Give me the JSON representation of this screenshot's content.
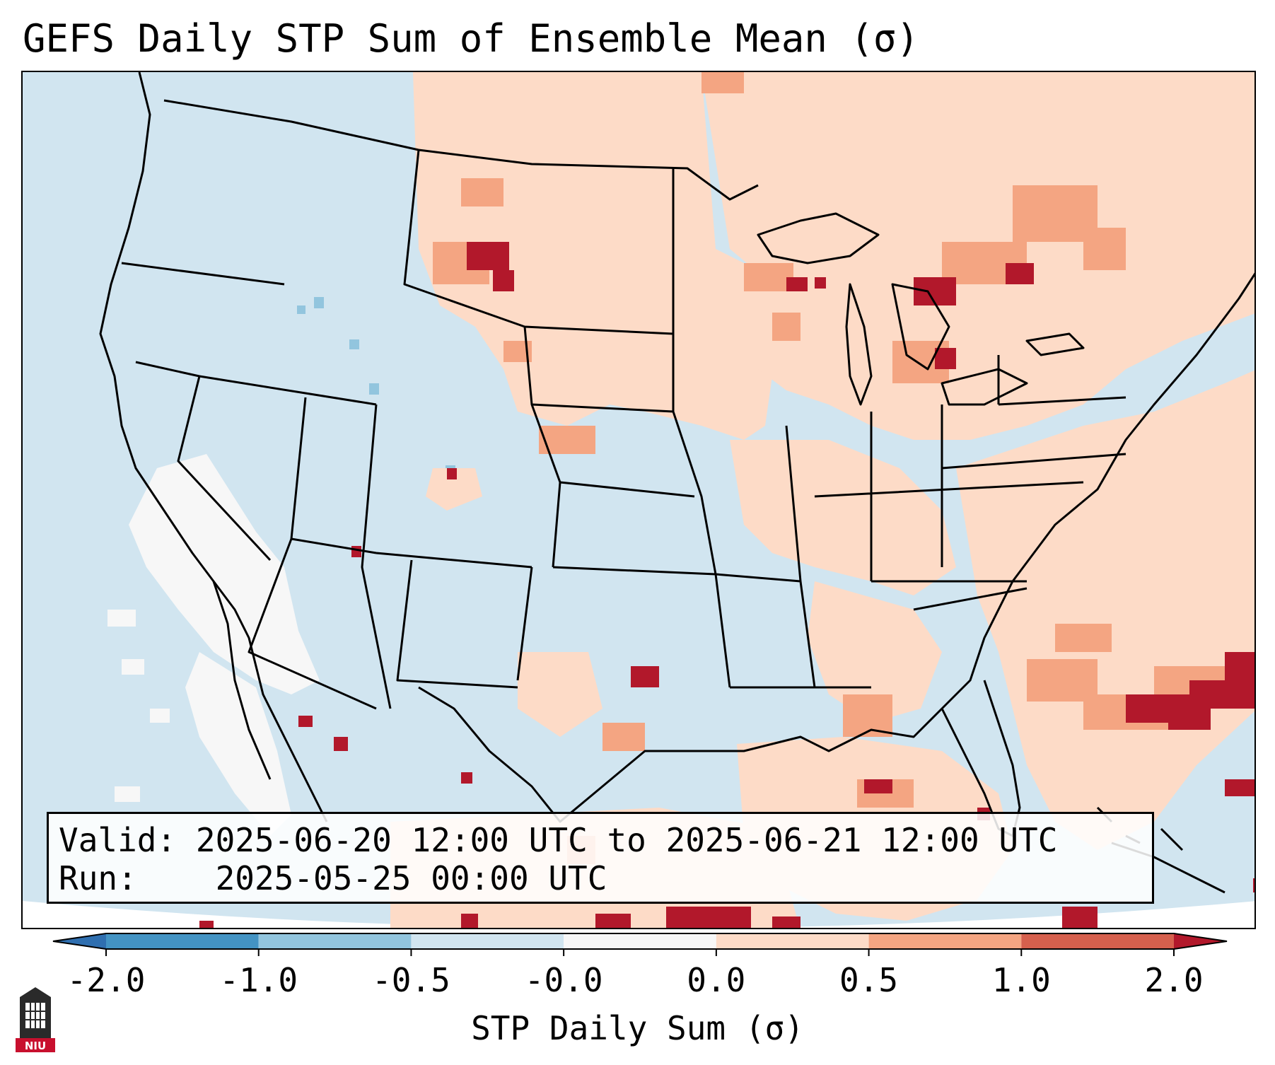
{
  "title": "GEFS Daily STP Sum of Ensemble Mean (σ)",
  "info": {
    "valid_label": "Valid:",
    "valid_value": "2025-06-20 12:00 UTC to 2025-06-21 12:00 UTC",
    "run_label": "Run:",
    "run_value": "2025-05-25 00:00 UTC"
  },
  "colorbar": {
    "label": "STP Daily Sum (σ)",
    "ticks": [
      "-2.0",
      "-1.0",
      "-0.5",
      "-0.0",
      "0.0",
      "0.5",
      "1.0",
      "2.0"
    ],
    "bins": [
      {
        "range": "< -2.0",
        "color": "#2f6fb0"
      },
      {
        "range": "-2.0 to -1.0",
        "color": "#4393c3"
      },
      {
        "range": "-1.0 to -0.5",
        "color": "#92c5de"
      },
      {
        "range": "-0.5 to -0.0",
        "color": "#d1e5f0"
      },
      {
        "range": "-0.0 to 0.0",
        "color": "#f7f7f7"
      },
      {
        "range": "0.0 to 0.5",
        "color": "#fddbc7"
      },
      {
        "range": "0.5 to 1.0",
        "color": "#f4a582"
      },
      {
        "range": "1.0 to 2.0",
        "color": "#d6604d"
      },
      {
        "range": "> 2.0",
        "color": "#b2182b"
      }
    ]
  },
  "map": {
    "region": "Continental United States",
    "field": "GEFS ensemble mean daily STP sum anomaly (σ)",
    "background_color": "#d1e5f0",
    "outline_color": "#000000"
  },
  "logo_text": "NIU"
}
